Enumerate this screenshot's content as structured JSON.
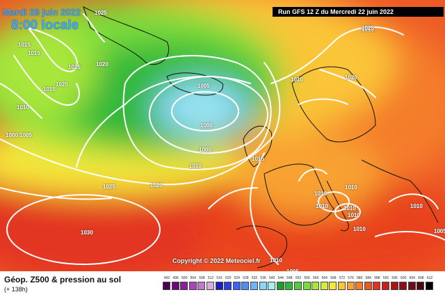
{
  "header": {
    "date": "Mardi 28 juin 2022",
    "time": "8:00 locale",
    "run": "Run GFS 12 Z du Mercredi 22 juin 2022"
  },
  "copyright": "Copyright © 2022 Meteociel.fr",
  "footer": {
    "title": "Géop. Z500 & pression au sol",
    "subtitle": "(+ 138h)"
  },
  "isobar_labels": [
    "1025",
    "1015",
    "1015",
    "1025",
    "1020",
    "1020",
    "1015",
    "1010",
    "1010",
    "1000",
    "1005",
    "1005",
    "1000",
    "1000",
    "1010",
    "1010",
    "1015",
    "1025",
    "1020",
    "1020",
    "1025",
    "1010",
    "1010",
    "1010",
    "1010",
    "1010",
    "1010",
    "1010",
    "1030",
    "1010",
    "1005",
    "1005"
  ],
  "legend": {
    "ticks": [
      "492",
      "496",
      "500",
      "504",
      "508",
      "512",
      "516",
      "520",
      "524",
      "528",
      "532",
      "536",
      "540",
      "544",
      "548",
      "552",
      "556",
      "560",
      "564",
      "568",
      "572",
      "576",
      "580",
      "584",
      "588",
      "592",
      "596",
      "600",
      "604",
      "608",
      "612"
    ],
    "colors": [
      "#4b0055",
      "#6a0a78",
      "#8a1f9a",
      "#a945b6",
      "#c07ac8",
      "#d9acd9",
      "#1d1cbe",
      "#2d3fe0",
      "#3b66f2",
      "#4f8ef8",
      "#6bb6fb",
      "#8ad6fb",
      "#a7eef2",
      "#1a9e2e",
      "#30b83a",
      "#52cc3a",
      "#7cdc3a",
      "#a8e63a",
      "#d3ec3a",
      "#f6e83a",
      "#fac537",
      "#f8a232",
      "#f47d2c",
      "#ee5826",
      "#e23420",
      "#c8201a",
      "#a8141a",
      "#8a0e1c",
      "#6f0a1a",
      "#4a0812",
      "#000000"
    ]
  }
}
